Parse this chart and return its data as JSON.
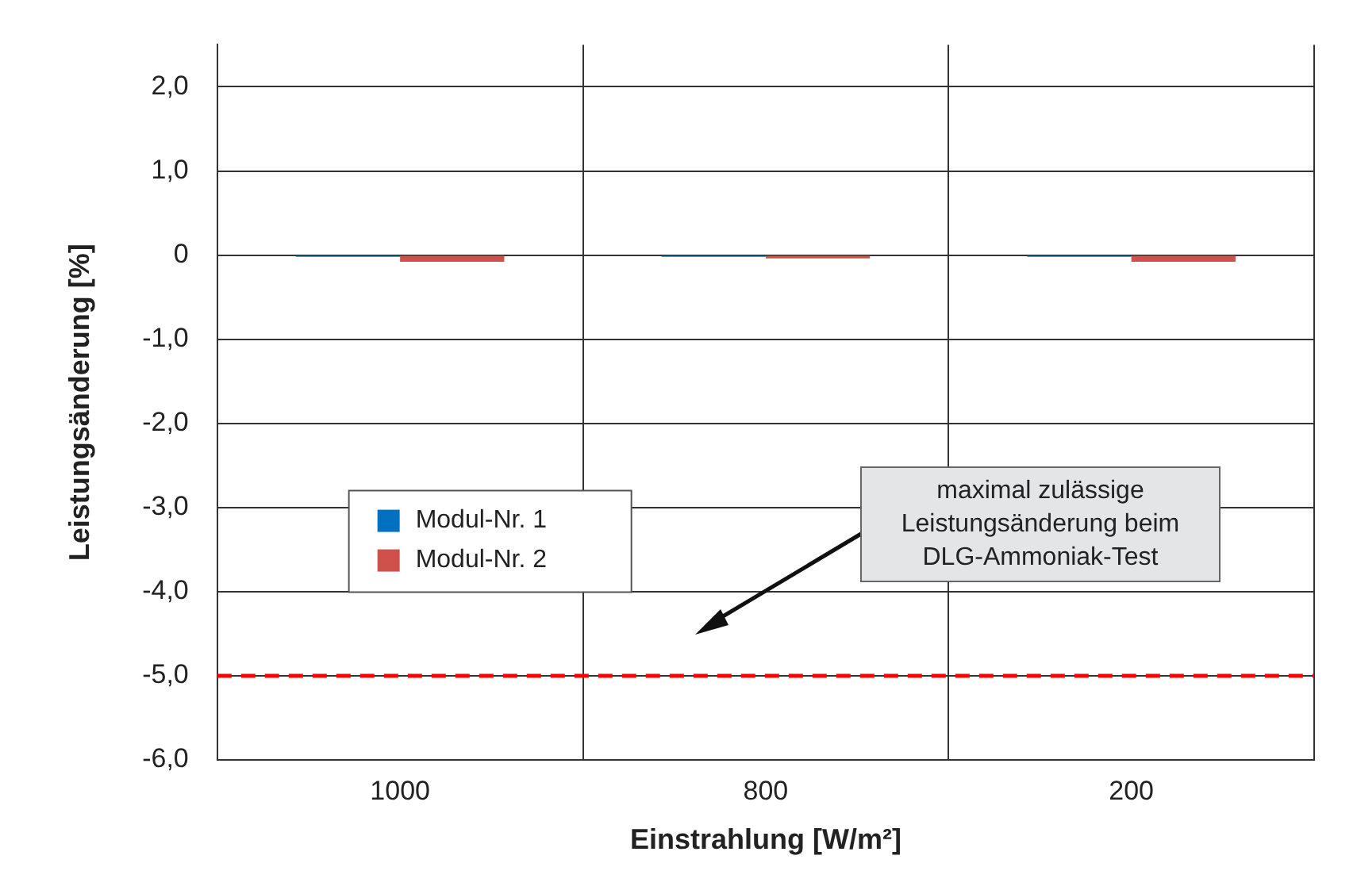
{
  "chart_data": {
    "type": "bar",
    "xlabel": "Einstrahlung [W/m²]",
    "ylabel": "Leistungsänderung [%]",
    "categories": [
      "1000",
      "800",
      "200"
    ],
    "series": [
      {
        "name": "Modul-Nr. 1",
        "color": "#0070c0",
        "values": [
          -0.02,
          -0.02,
          -0.02
        ]
      },
      {
        "name": "Modul-Nr. 2",
        "color": "#d0504c",
        "values": [
          -0.08,
          -0.04,
          -0.08
        ]
      }
    ],
    "ylim": [
      -6,
      2.5
    ],
    "yticks": [
      {
        "value": -6,
        "label": "-6,0"
      },
      {
        "value": -5,
        "label": "-5,0"
      },
      {
        "value": -4,
        "label": "-4,0"
      },
      {
        "value": -3,
        "label": "-3,0"
      },
      {
        "value": -2,
        "label": "-2,0"
      },
      {
        "value": -1,
        "label": "-1,0"
      },
      {
        "value": 0,
        "label": "0"
      },
      {
        "value": 1,
        "label": "1,0"
      },
      {
        "value": 2,
        "label": "2,0"
      }
    ],
    "ref_lines": [
      {
        "axis": "y",
        "value": -5,
        "color": "#ff0000",
        "line_style": "dashed"
      }
    ],
    "annotations": [
      "maximal zulässige Leistungsänderung beim DLG-Ammoniak-Test"
    ],
    "grid": true,
    "legend": "left"
  }
}
